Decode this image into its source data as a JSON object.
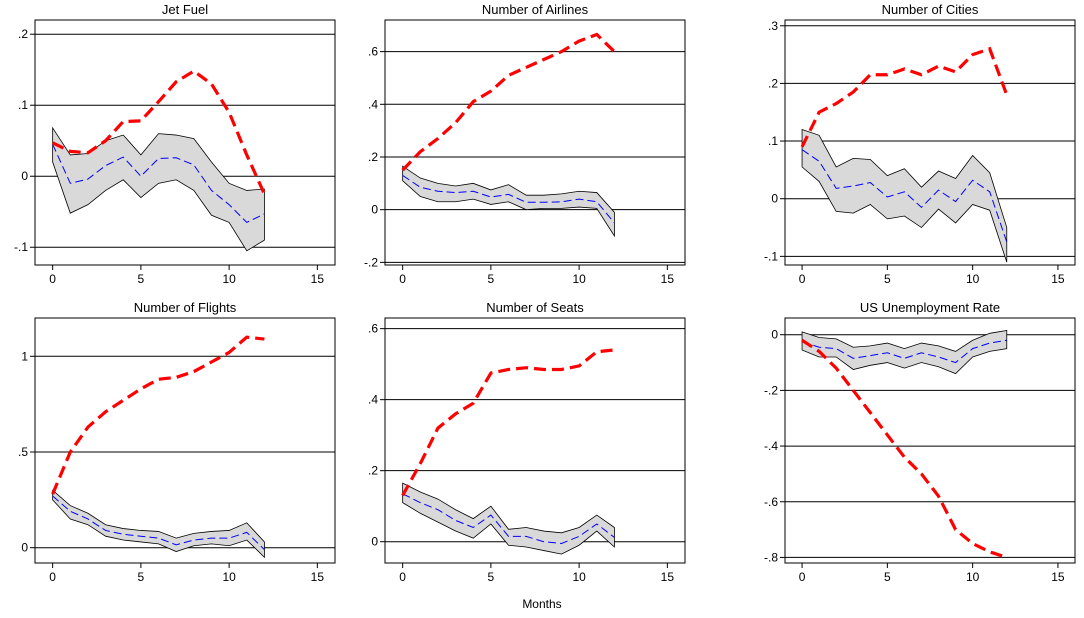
{
  "xlabel": "Months",
  "colors": {
    "band_fill": "#d9d9d9",
    "band_edge": "#000000",
    "mean_line": "#0000ff",
    "alt_line": "#ff0000",
    "gridline": "#000000"
  },
  "chart_data": [
    {
      "type": "line",
      "title": "Jet Fuel",
      "xlim": [
        -1,
        16
      ],
      "ylim": [
        -0.125,
        0.22
      ],
      "xticks": [
        0,
        5,
        10,
        15
      ],
      "xtick_labels": [
        "0",
        "5",
        "10",
        "15"
      ],
      "yticks": [
        -0.1,
        0,
        0.1,
        0.2
      ],
      "ytick_labels": [
        "-.1",
        "0",
        ".1",
        ".2"
      ],
      "x": [
        0,
        1,
        2,
        3,
        4,
        5,
        6,
        7,
        8,
        9,
        10,
        11,
        12
      ],
      "series": [
        {
          "role": "ci_upper",
          "values": [
            0.068,
            0.03,
            0.032,
            0.05,
            0.058,
            0.03,
            0.06,
            0.058,
            0.053,
            0.02,
            -0.01,
            -0.02,
            -0.018
          ]
        },
        {
          "role": "ci_lower",
          "values": [
            0.02,
            -0.052,
            -0.04,
            -0.02,
            -0.005,
            -0.03,
            -0.01,
            -0.005,
            -0.02,
            -0.055,
            -0.065,
            -0.105,
            -0.09
          ]
        },
        {
          "role": "mean",
          "values": [
            0.045,
            -0.01,
            -0.004,
            0.015,
            0.027,
            0.0,
            0.025,
            0.026,
            0.016,
            -0.02,
            -0.04,
            -0.065,
            -0.053
          ]
        },
        {
          "role": "alternative",
          "values": [
            0.047,
            0.035,
            0.033,
            0.05,
            0.077,
            0.078,
            0.105,
            0.133,
            0.148,
            0.13,
            0.09,
            0.03,
            -0.025
          ]
        }
      ]
    },
    {
      "type": "line",
      "title": "Number of Airlines",
      "xlim": [
        -1,
        16
      ],
      "ylim": [
        -0.21,
        0.72
      ],
      "xticks": [
        0,
        5,
        10,
        15
      ],
      "xtick_labels": [
        "0",
        "5",
        "10",
        "15"
      ],
      "yticks": [
        -0.2,
        0,
        0.2,
        0.4,
        0.6
      ],
      "ytick_labels": [
        "-.2",
        "0",
        ".2",
        ".4",
        ".6"
      ],
      "x": [
        0,
        1,
        2,
        3,
        4,
        5,
        6,
        7,
        8,
        9,
        10,
        11,
        12
      ],
      "series": [
        {
          "role": "ci_upper",
          "values": [
            0.165,
            0.12,
            0.1,
            0.09,
            0.1,
            0.075,
            0.095,
            0.055,
            0.055,
            0.06,
            0.07,
            0.065,
            -0.01
          ]
        },
        {
          "role": "ci_lower",
          "values": [
            0.11,
            0.05,
            0.03,
            0.03,
            0.04,
            0.02,
            0.03,
            0.0,
            0.005,
            0.005,
            0.01,
            0.005,
            -0.1
          ]
        },
        {
          "role": "mean",
          "values": [
            0.13,
            0.085,
            0.07,
            0.065,
            0.07,
            0.048,
            0.058,
            0.028,
            0.028,
            0.03,
            0.04,
            0.03,
            -0.05
          ]
        },
        {
          "role": "alternative",
          "values": [
            0.15,
            0.22,
            0.27,
            0.33,
            0.41,
            0.45,
            0.51,
            0.54,
            0.57,
            0.6,
            0.64,
            0.665,
            0.6
          ]
        }
      ]
    },
    {
      "type": "line",
      "title": "Number of Cities",
      "xlim": [
        -1,
        16
      ],
      "ylim": [
        -0.115,
        0.31
      ],
      "xticks": [
        0,
        5,
        10,
        15
      ],
      "xtick_labels": [
        "0",
        "5",
        "10",
        "15"
      ],
      "yticks": [
        -0.1,
        0,
        0.1,
        0.2,
        0.3
      ],
      "ytick_labels": [
        "-.1",
        "0",
        ".1",
        ".2",
        ".3"
      ],
      "x": [
        0,
        1,
        2,
        3,
        4,
        5,
        6,
        7,
        8,
        9,
        10,
        11,
        12
      ],
      "series": [
        {
          "role": "ci_upper",
          "values": [
            0.12,
            0.11,
            0.055,
            0.07,
            0.068,
            0.04,
            0.052,
            0.02,
            0.048,
            0.035,
            0.075,
            0.045,
            -0.05
          ]
        },
        {
          "role": "ci_lower",
          "values": [
            0.055,
            0.03,
            -0.022,
            -0.025,
            -0.01,
            -0.035,
            -0.03,
            -0.05,
            -0.018,
            -0.042,
            -0.01,
            -0.02,
            -0.11
          ]
        },
        {
          "role": "mean",
          "values": [
            0.085,
            0.065,
            0.018,
            0.022,
            0.028,
            0.003,
            0.012,
            -0.015,
            0.015,
            -0.005,
            0.032,
            0.012,
            -0.075
          ]
        },
        {
          "role": "alternative",
          "values": [
            0.09,
            0.15,
            0.165,
            0.185,
            0.215,
            0.215,
            0.225,
            0.215,
            0.23,
            0.22,
            0.25,
            0.26,
            0.18
          ]
        }
      ]
    },
    {
      "type": "line",
      "title": "Number of Flights",
      "xlim": [
        -1,
        16
      ],
      "ylim": [
        -0.08,
        1.2
      ],
      "xticks": [
        0,
        5,
        10,
        15
      ],
      "xtick_labels": [
        "0",
        "5",
        "10",
        "15"
      ],
      "yticks": [
        0,
        0.5,
        1
      ],
      "ytick_labels": [
        "0",
        ".5",
        "1"
      ],
      "x": [
        0,
        1,
        2,
        3,
        4,
        5,
        6,
        7,
        8,
        9,
        10,
        11,
        12
      ],
      "series": [
        {
          "role": "ci_upper",
          "values": [
            0.3,
            0.22,
            0.18,
            0.12,
            0.1,
            0.09,
            0.085,
            0.05,
            0.075,
            0.085,
            0.09,
            0.13,
            0.03
          ]
        },
        {
          "role": "ci_lower",
          "values": [
            0.25,
            0.15,
            0.12,
            0.06,
            0.04,
            0.03,
            0.02,
            -0.02,
            0.01,
            0.02,
            0.01,
            0.04,
            -0.05
          ]
        },
        {
          "role": "mean",
          "values": [
            0.27,
            0.19,
            0.15,
            0.09,
            0.07,
            0.06,
            0.05,
            0.015,
            0.04,
            0.05,
            0.05,
            0.08,
            -0.01
          ]
        },
        {
          "role": "alternative",
          "values": [
            0.28,
            0.5,
            0.63,
            0.71,
            0.77,
            0.83,
            0.88,
            0.89,
            0.92,
            0.97,
            1.02,
            1.1,
            1.09
          ]
        }
      ]
    },
    {
      "type": "line",
      "title": "Number of Seats",
      "xlim": [
        -1,
        16
      ],
      "ylim": [
        -0.06,
        0.63
      ],
      "xticks": [
        0,
        5,
        10,
        15
      ],
      "xtick_labels": [
        "0",
        "5",
        "10",
        "15"
      ],
      "yticks": [
        0,
        0.2,
        0.4,
        0.6
      ],
      "ytick_labels": [
        "0",
        ".2",
        ".4",
        ".6"
      ],
      "x": [
        0,
        1,
        2,
        3,
        4,
        5,
        6,
        7,
        8,
        9,
        10,
        11,
        12
      ],
      "series": [
        {
          "role": "ci_upper",
          "values": [
            0.165,
            0.14,
            0.12,
            0.09,
            0.065,
            0.1,
            0.035,
            0.04,
            0.03,
            0.025,
            0.04,
            0.075,
            0.04
          ]
        },
        {
          "role": "ci_lower",
          "values": [
            0.11,
            0.08,
            0.055,
            0.03,
            0.01,
            0.05,
            -0.01,
            -0.015,
            -0.025,
            -0.035,
            -0.01,
            0.03,
            -0.015
          ]
        },
        {
          "role": "mean",
          "values": [
            0.135,
            0.11,
            0.09,
            0.06,
            0.04,
            0.075,
            0.015,
            0.015,
            0.0,
            -0.005,
            0.015,
            0.05,
            0.012
          ]
        },
        {
          "role": "alternative",
          "values": [
            0.13,
            0.22,
            0.32,
            0.36,
            0.39,
            0.475,
            0.485,
            0.49,
            0.485,
            0.485,
            0.495,
            0.535,
            0.54
          ]
        }
      ]
    },
    {
      "type": "line",
      "title": "US Unemployment Rate",
      "xlim": [
        -1,
        16
      ],
      "ylim": [
        -0.82,
        0.06
      ],
      "xticks": [
        0,
        5,
        10,
        15
      ],
      "xtick_labels": [
        "0",
        "5",
        "10",
        "15"
      ],
      "yticks": [
        -0.8,
        -0.6,
        -0.4,
        -0.2,
        0
      ],
      "ytick_labels": [
        "-.8",
        "-.6",
        "-.4",
        "-.2",
        "0"
      ],
      "x": [
        0,
        1,
        2,
        3,
        4,
        5,
        6,
        7,
        8,
        9,
        10,
        11,
        12
      ],
      "series": [
        {
          "role": "ci_upper",
          "values": [
            0.01,
            -0.01,
            -0.015,
            -0.045,
            -0.04,
            -0.03,
            -0.05,
            -0.03,
            -0.04,
            -0.06,
            -0.02,
            0.005,
            0.015
          ]
        },
        {
          "role": "ci_lower",
          "values": [
            -0.055,
            -0.08,
            -0.08,
            -0.125,
            -0.11,
            -0.1,
            -0.12,
            -0.1,
            -0.115,
            -0.14,
            -0.08,
            -0.06,
            -0.05
          ]
        },
        {
          "role": "mean",
          "values": [
            -0.025,
            -0.045,
            -0.05,
            -0.085,
            -0.075,
            -0.065,
            -0.085,
            -0.065,
            -0.08,
            -0.1,
            -0.05,
            -0.03,
            -0.02
          ]
        },
        {
          "role": "alternative",
          "values": [
            -0.02,
            -0.06,
            -0.12,
            -0.2,
            -0.28,
            -0.36,
            -0.44,
            -0.5,
            -0.58,
            -0.7,
            -0.75,
            -0.78,
            -0.8
          ]
        }
      ]
    }
  ]
}
